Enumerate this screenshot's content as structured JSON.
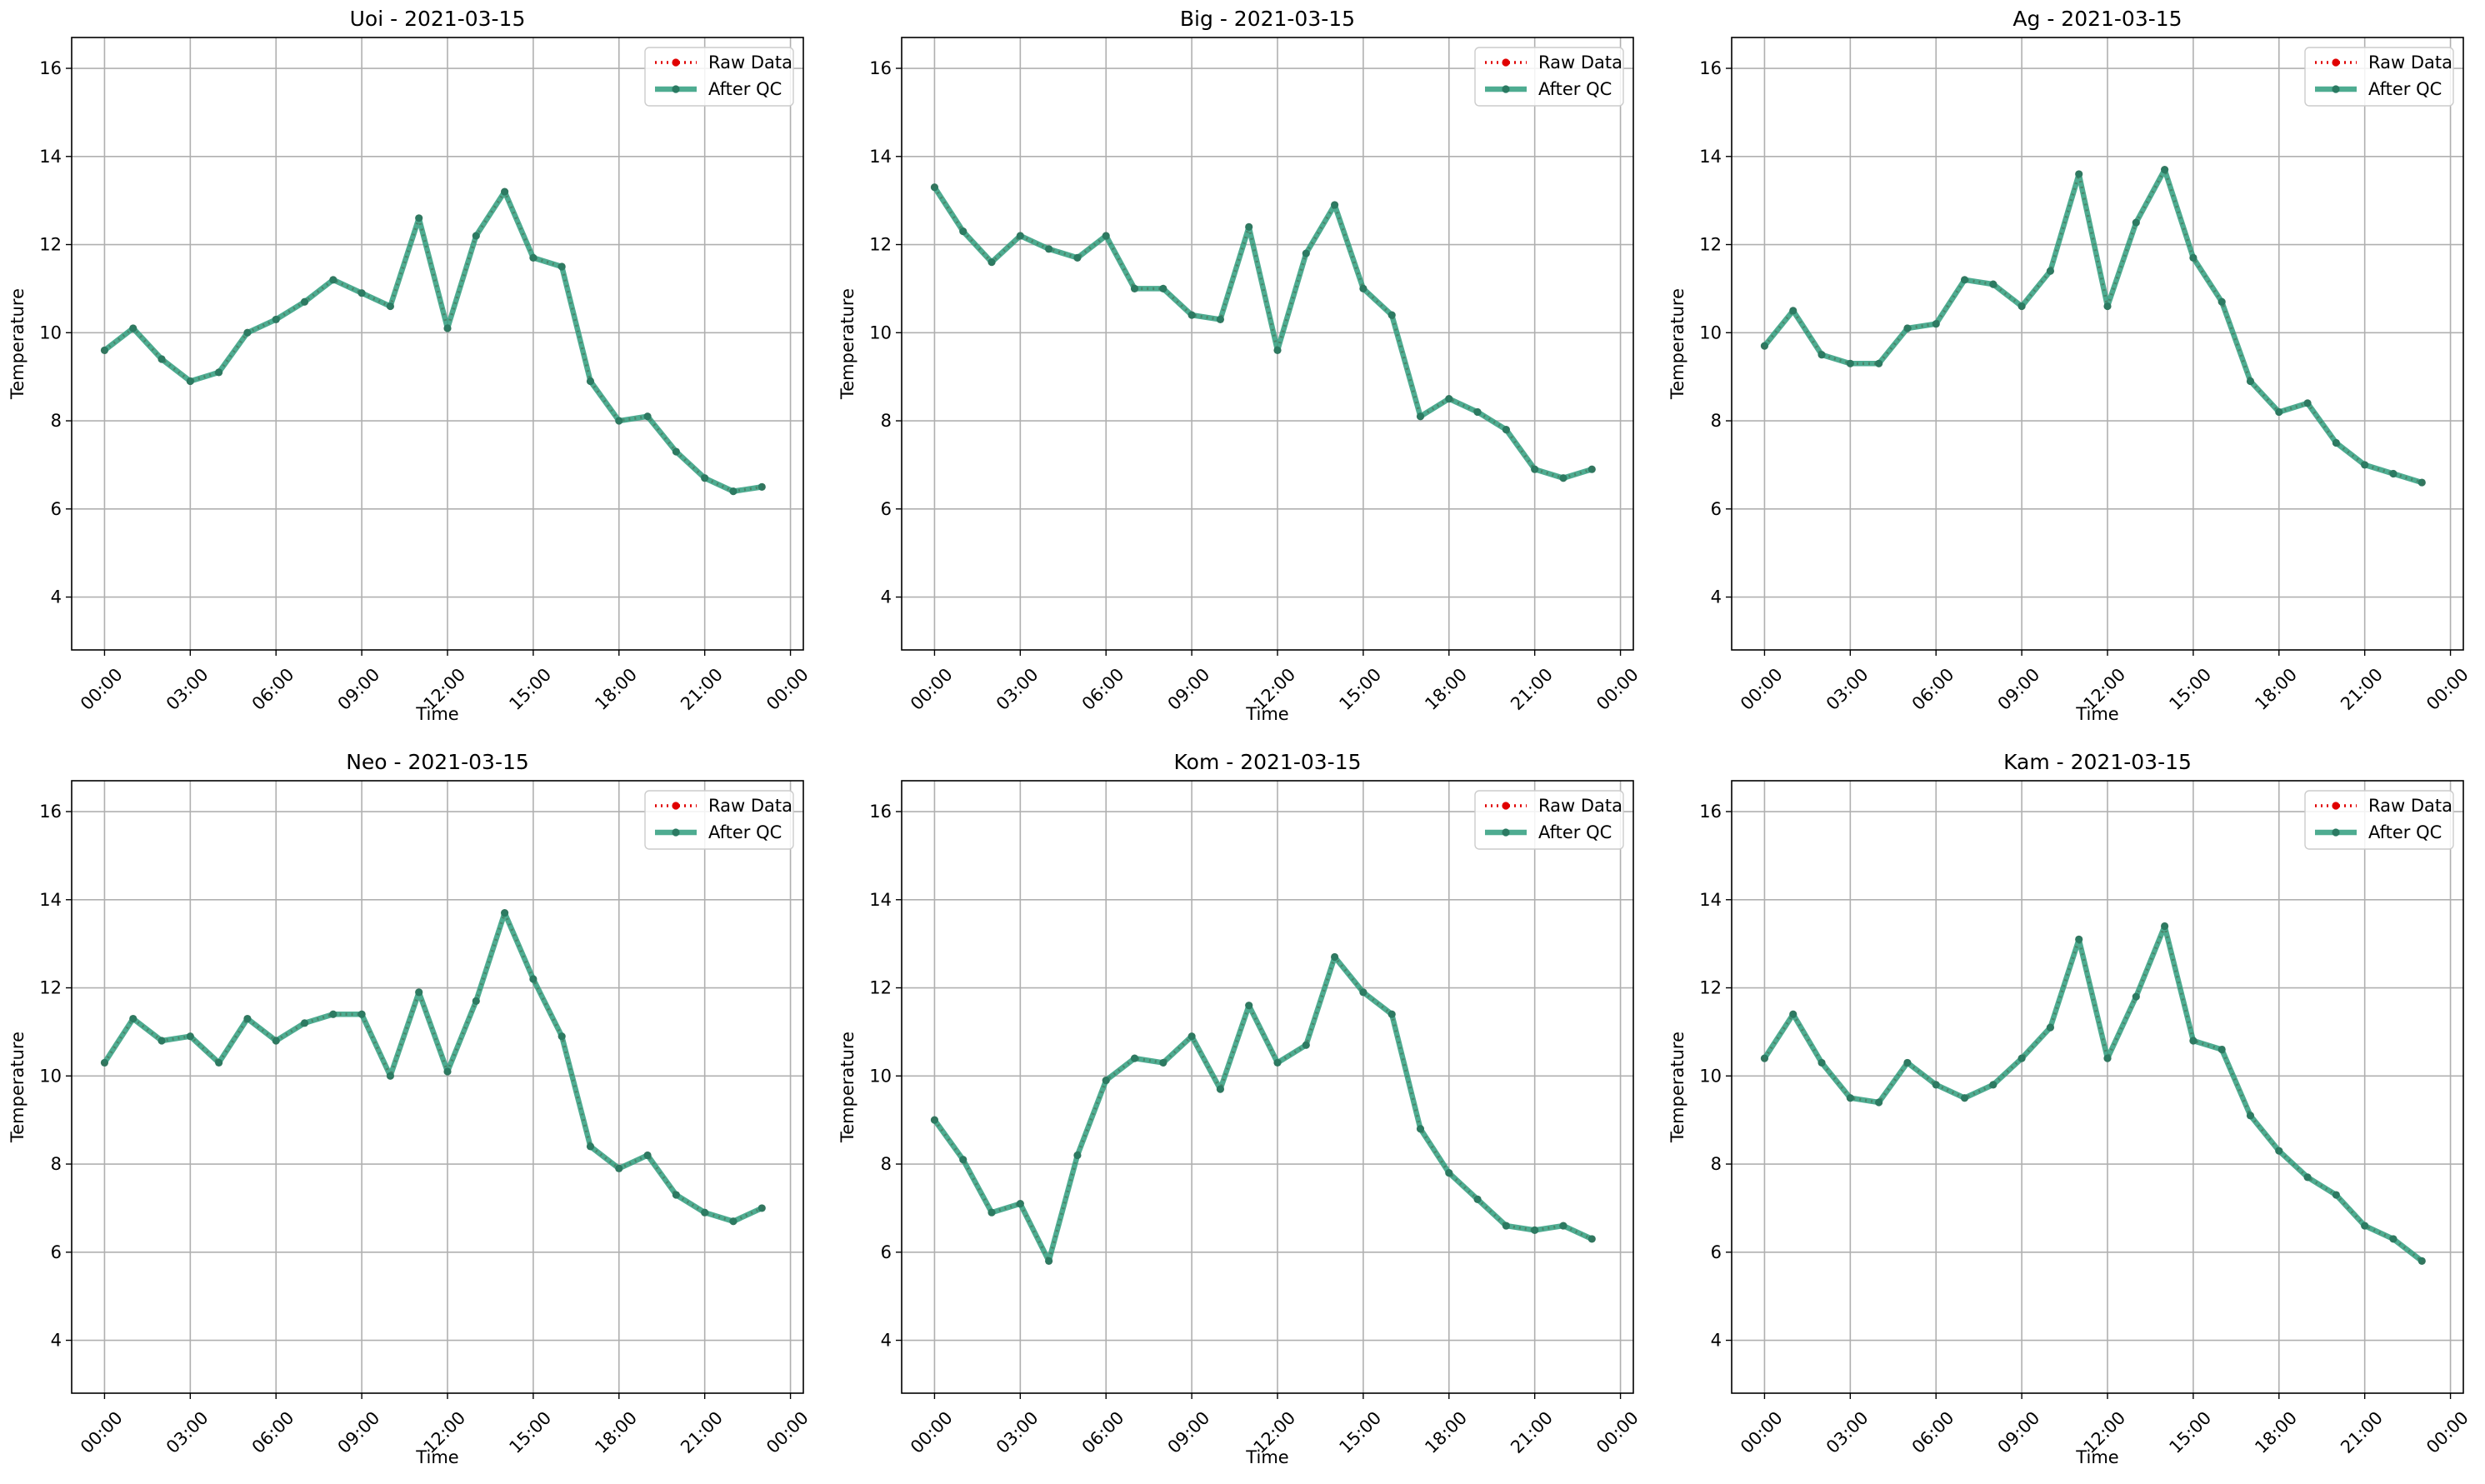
{
  "chart_data": [
    {
      "type": "line",
      "title": "Uoi - 2021-03-15",
      "xlabel": "Time",
      "ylabel": "Temperature",
      "x_ticks": [
        "00:00",
        "03:00",
        "06:00",
        "09:00",
        "12:00",
        "15:00",
        "18:00",
        "21:00",
        "00:00"
      ],
      "y_ticks": [
        4,
        6,
        8,
        10,
        12,
        14,
        16
      ],
      "ylim": [
        2.8,
        16.7
      ],
      "grid": true,
      "legend_position": "top-right",
      "series": [
        {
          "name": "Raw Data",
          "color": "#e00000",
          "values": [
            9.6,
            10.1,
            9.4,
            8.9,
            9.1,
            10.0,
            10.3,
            10.7,
            11.2,
            10.9,
            10.6,
            12.6,
            10.1,
            12.2,
            13.2,
            11.7,
            11.5,
            8.9,
            8.0,
            8.1,
            7.3,
            6.7,
            6.4,
            6.5
          ]
        },
        {
          "name": "After QC",
          "color": "#2f9e7e",
          "values": [
            9.6,
            10.1,
            9.4,
            8.9,
            9.1,
            10.0,
            10.3,
            10.7,
            11.2,
            10.9,
            10.6,
            12.6,
            10.1,
            12.2,
            13.2,
            11.7,
            11.5,
            8.9,
            8.0,
            8.1,
            7.3,
            6.7,
            6.4,
            6.5
          ]
        }
      ]
    },
    {
      "type": "line",
      "title": "Big - 2021-03-15",
      "xlabel": "Time",
      "ylabel": "Temperature",
      "x_ticks": [
        "00:00",
        "03:00",
        "06:00",
        "09:00",
        "12:00",
        "15:00",
        "18:00",
        "21:00",
        "00:00"
      ],
      "y_ticks": [
        4,
        6,
        8,
        10,
        12,
        14,
        16
      ],
      "ylim": [
        2.8,
        16.7
      ],
      "grid": true,
      "legend_position": "top-right",
      "series": [
        {
          "name": "Raw Data",
          "color": "#e00000",
          "values": [
            13.3,
            12.3,
            11.6,
            12.2,
            11.9,
            11.7,
            12.2,
            11.0,
            11.0,
            10.4,
            10.3,
            12.4,
            9.6,
            11.8,
            12.9,
            11.0,
            10.4,
            8.1,
            8.5,
            8.2,
            7.8,
            6.9,
            6.7,
            6.9
          ]
        },
        {
          "name": "After QC",
          "color": "#2f9e7e",
          "values": [
            13.3,
            12.3,
            11.6,
            12.2,
            11.9,
            11.7,
            12.2,
            11.0,
            11.0,
            10.4,
            10.3,
            12.4,
            9.6,
            11.8,
            12.9,
            11.0,
            10.4,
            8.1,
            8.5,
            8.2,
            7.8,
            6.9,
            6.7,
            6.9
          ]
        }
      ]
    },
    {
      "type": "line",
      "title": "Ag - 2021-03-15",
      "xlabel": "Time",
      "ylabel": "Temperature",
      "x_ticks": [
        "00:00",
        "03:00",
        "06:00",
        "09:00",
        "12:00",
        "15:00",
        "18:00",
        "21:00",
        "00:00"
      ],
      "y_ticks": [
        4,
        6,
        8,
        10,
        12,
        14,
        16
      ],
      "ylim": [
        2.8,
        16.7
      ],
      "grid": true,
      "legend_position": "top-right",
      "series": [
        {
          "name": "Raw Data",
          "color": "#e00000",
          "values": [
            9.7,
            10.5,
            9.5,
            9.3,
            9.3,
            10.1,
            10.2,
            11.2,
            11.1,
            10.6,
            11.4,
            13.6,
            10.6,
            12.5,
            13.7,
            11.7,
            10.7,
            8.9,
            8.2,
            8.4,
            7.5,
            7.0,
            6.8,
            6.6
          ]
        },
        {
          "name": "After QC",
          "color": "#2f9e7e",
          "values": [
            9.7,
            10.5,
            9.5,
            9.3,
            9.3,
            10.1,
            10.2,
            11.2,
            11.1,
            10.6,
            11.4,
            13.6,
            10.6,
            12.5,
            13.7,
            11.7,
            10.7,
            8.9,
            8.2,
            8.4,
            7.5,
            7.0,
            6.8,
            6.6
          ]
        }
      ]
    },
    {
      "type": "line",
      "title": "Neo - 2021-03-15",
      "xlabel": "Time",
      "ylabel": "Temperature",
      "x_ticks": [
        "00:00",
        "03:00",
        "06:00",
        "09:00",
        "12:00",
        "15:00",
        "18:00",
        "21:00",
        "00:00"
      ],
      "y_ticks": [
        4,
        6,
        8,
        10,
        12,
        14,
        16
      ],
      "ylim": [
        2.8,
        16.7
      ],
      "grid": true,
      "legend_position": "top-right",
      "series": [
        {
          "name": "Raw Data",
          "color": "#e00000",
          "values": [
            10.3,
            11.3,
            10.8,
            10.9,
            10.3,
            11.3,
            10.8,
            11.2,
            11.4,
            11.4,
            10.0,
            11.9,
            10.1,
            11.7,
            13.7,
            12.2,
            10.9,
            8.4,
            7.9,
            8.2,
            7.3,
            6.9,
            6.7,
            7.0
          ]
        },
        {
          "name": "After QC",
          "color": "#2f9e7e",
          "values": [
            10.3,
            11.3,
            10.8,
            10.9,
            10.3,
            11.3,
            10.8,
            11.2,
            11.4,
            11.4,
            10.0,
            11.9,
            10.1,
            11.7,
            13.7,
            12.2,
            10.9,
            8.4,
            7.9,
            8.2,
            7.3,
            6.9,
            6.7,
            7.0
          ]
        }
      ]
    },
    {
      "type": "line",
      "title": "Kom - 2021-03-15",
      "xlabel": "Time",
      "ylabel": "Temperature",
      "x_ticks": [
        "00:00",
        "03:00",
        "06:00",
        "09:00",
        "12:00",
        "15:00",
        "18:00",
        "21:00",
        "00:00"
      ],
      "y_ticks": [
        4,
        6,
        8,
        10,
        12,
        14,
        16
      ],
      "ylim": [
        2.8,
        16.7
      ],
      "grid": true,
      "legend_position": "top-right",
      "series": [
        {
          "name": "Raw Data",
          "color": "#e00000",
          "values": [
            9.0,
            8.1,
            6.9,
            7.1,
            5.8,
            8.2,
            9.9,
            10.4,
            10.3,
            10.9,
            9.7,
            11.6,
            10.3,
            10.7,
            12.7,
            11.9,
            11.4,
            8.8,
            7.8,
            7.2,
            6.6,
            6.5,
            6.6,
            6.3
          ]
        },
        {
          "name": "After QC",
          "color": "#2f9e7e",
          "values": [
            9.0,
            8.1,
            6.9,
            7.1,
            5.8,
            8.2,
            9.9,
            10.4,
            10.3,
            10.9,
            9.7,
            11.6,
            10.3,
            10.7,
            12.7,
            11.9,
            11.4,
            8.8,
            7.8,
            7.2,
            6.6,
            6.5,
            6.6,
            6.3
          ]
        }
      ]
    },
    {
      "type": "line",
      "title": "Kam - 2021-03-15",
      "xlabel": "Time",
      "ylabel": "Temperature",
      "x_ticks": [
        "00:00",
        "03:00",
        "06:00",
        "09:00",
        "12:00",
        "15:00",
        "18:00",
        "21:00",
        "00:00"
      ],
      "y_ticks": [
        4,
        6,
        8,
        10,
        12,
        14,
        16
      ],
      "ylim": [
        2.8,
        16.7
      ],
      "grid": true,
      "legend_position": "top-right",
      "series": [
        {
          "name": "Raw Data",
          "color": "#e00000",
          "values": [
            10.4,
            11.4,
            10.3,
            9.5,
            9.4,
            10.3,
            9.8,
            9.5,
            9.8,
            10.4,
            11.1,
            13.1,
            10.4,
            11.8,
            13.4,
            10.8,
            10.6,
            9.1,
            8.3,
            7.7,
            7.3,
            6.6,
            6.3,
            5.8
          ]
        },
        {
          "name": "After QC",
          "color": "#2f9e7e",
          "values": [
            10.4,
            11.4,
            10.3,
            9.5,
            9.4,
            10.3,
            9.8,
            9.5,
            9.8,
            10.4,
            11.1,
            13.1,
            10.4,
            11.8,
            13.4,
            10.8,
            10.6,
            9.1,
            8.3,
            7.7,
            7.3,
            6.6,
            6.3,
            5.8
          ]
        }
      ]
    }
  ]
}
